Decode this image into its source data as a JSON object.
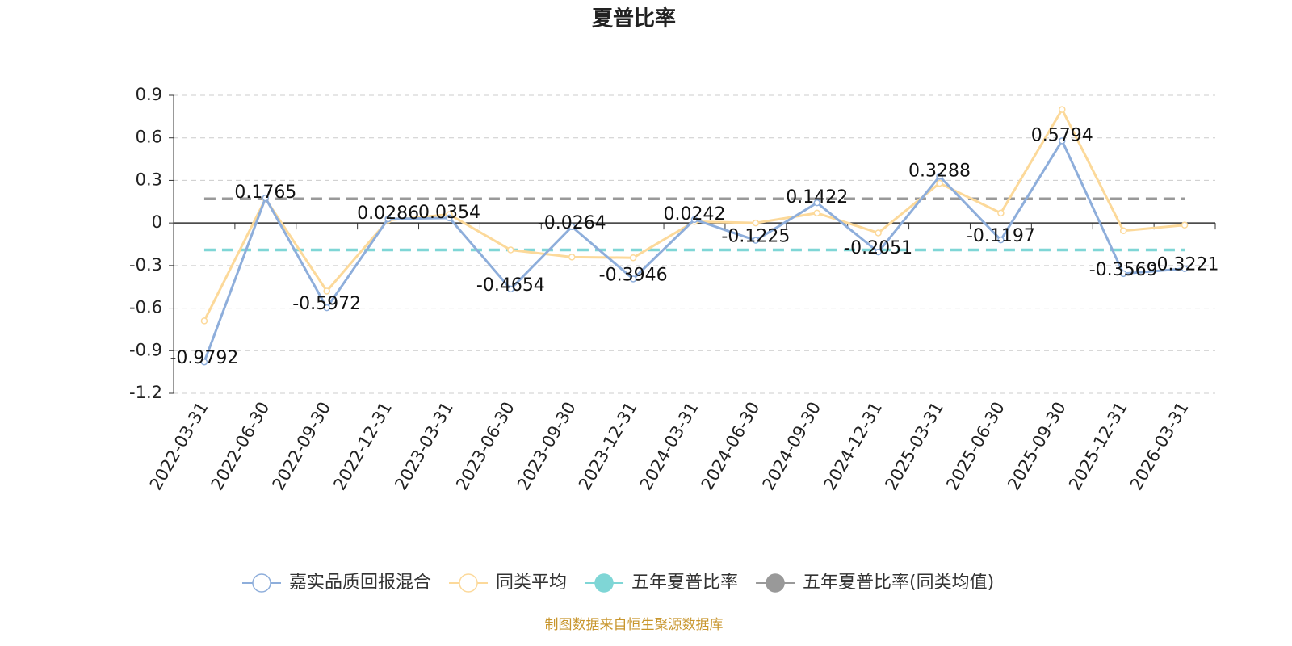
{
  "chart_data": {
    "type": "line",
    "title": "夏普比率",
    "categories": [
      "2022-03-31",
      "2022-06-30",
      "2022-09-30",
      "2022-12-31",
      "2023-03-31",
      "2023-06-30",
      "2023-09-30",
      "2023-12-31",
      "2024-03-31",
      "2024-06-30",
      "2024-09-30",
      "2024-12-31",
      "2025-03-31",
      "2025-06-30",
      "2025-09-30",
      "2025-12-31",
      "2026-03-31"
    ],
    "series": [
      {
        "name": "嘉实品质回报混合",
        "color": "#8eaedb",
        "labels": true,
        "values": [
          -0.9792,
          0.1765,
          -0.5972,
          0.0286,
          0.0354,
          -0.4654,
          -0.0264,
          -0.3946,
          0.0242,
          -0.1225,
          0.1422,
          -0.2051,
          0.3288,
          -0.1197,
          0.5794,
          -0.3569,
          -0.3221
        ]
      },
      {
        "name": "同类平均",
        "color": "#fcd99a",
        "labels": false,
        "values": [
          -0.69,
          0.17,
          -0.48,
          0.02,
          0.06,
          -0.19,
          -0.24,
          -0.245,
          0.01,
          0.0,
          0.07,
          -0.07,
          0.28,
          0.07,
          0.8,
          -0.055,
          -0.015
        ]
      }
    ],
    "reference_lines": [
      {
        "name": "五年夏普比率",
        "color": "#7fd6d6",
        "value": -0.19
      },
      {
        "name": "五年夏普比率(同类均值)",
        "color": "#999999",
        "value": 0.17
      }
    ],
    "ylim": [
      -1.2,
      0.9
    ],
    "yticks": [
      -1.2,
      -0.9,
      -0.6,
      -0.3,
      0,
      0.3,
      0.6,
      0.9
    ],
    "grid": true,
    "source": "制图数据来自恒生聚源数据库"
  }
}
